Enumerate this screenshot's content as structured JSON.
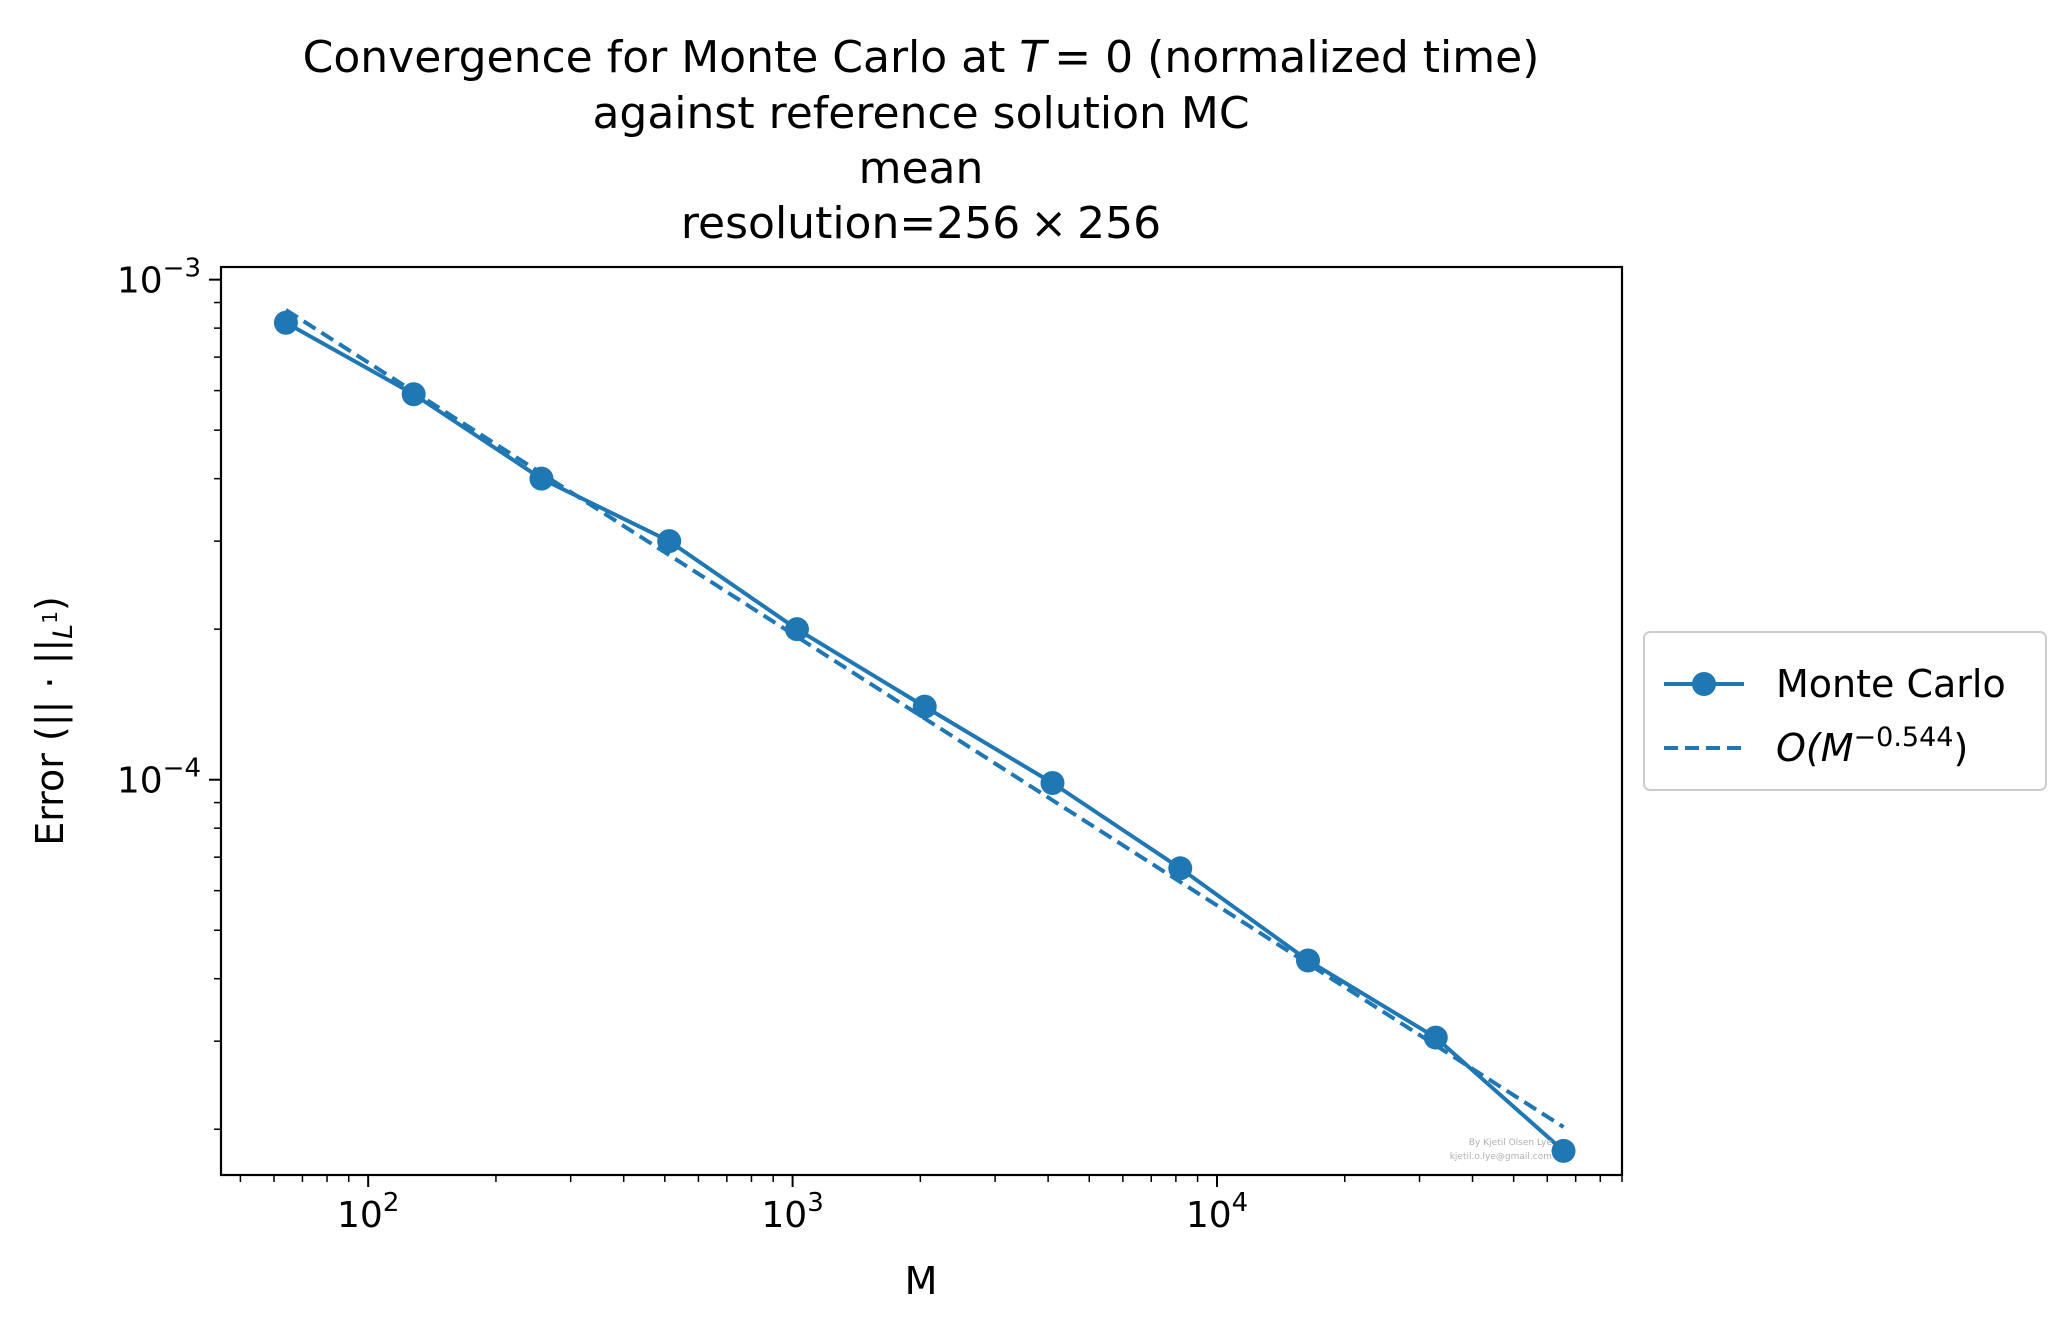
{
  "chart_data": {
    "type": "line",
    "title_lines": [
      "Convergence for Monte Carlo at",
      "(normalized time)",
      "against reference solution MC",
      "mean",
      "resolution=256",
      "256"
    ],
    "title_math": {
      "T": "T",
      "eq": "= 0",
      "times": "×"
    },
    "xlabel": "M",
    "ylabel": {
      "prefix": "Error (",
      "norm": "|| · ||",
      "sub": "L",
      "sup": "1",
      "suffix": ")"
    },
    "xscale": "log",
    "yscale": "log",
    "xlim": [
      45,
      90000
    ],
    "ylim": [
      1.62e-05,
      0.00106
    ],
    "x_ticks": [
      {
        "base": "10",
        "exp": "2",
        "value": 100
      },
      {
        "base": "10",
        "exp": "3",
        "value": 1000
      },
      {
        "base": "10",
        "exp": "4",
        "value": 10000
      }
    ],
    "y_ticks": [
      {
        "base": "10",
        "exp": "−3",
        "value": 0.001
      },
      {
        "base": "10",
        "exp": "−4",
        "value": 0.0001
      }
    ],
    "grid": false,
    "legend_position": "outside-right",
    "series": [
      {
        "name": "Monte Carlo",
        "style": "solid-with-markers",
        "color": "#1f77b4",
        "x": [
          64,
          128,
          256,
          512,
          1024,
          2048,
          4096,
          8192,
          16384,
          32768,
          65536
        ],
        "y": [
          0.00082,
          0.00059,
          0.0004,
          0.0003,
          0.0002,
          0.00014,
          9.85e-05,
          6.65e-05,
          4.35e-05,
          3.05e-05,
          1.81e-05
        ]
      },
      {
        "name": "O(M",
        "name_sup": "−0.544",
        "name_suffix": ")",
        "style": "dashed",
        "color": "#1f77b4",
        "x": [
          64,
          65536
        ],
        "y": [
          0.00087,
          2.02e-05
        ]
      }
    ],
    "credit": {
      "line1": "By Kjetil Olsen Lye",
      "line2": "kjetil.o.lye@gmail.com"
    }
  }
}
